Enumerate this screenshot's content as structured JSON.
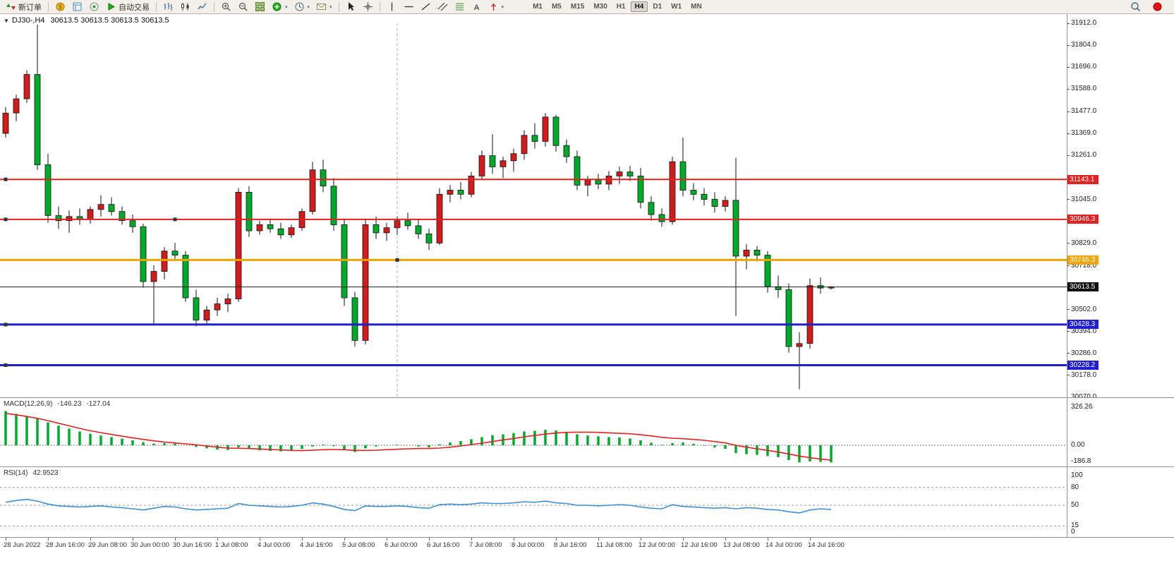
{
  "toolbar": {
    "new_order_label": "新订单",
    "autotrading_label": "自动交易",
    "left_icons": [
      {
        "icon": "market-watch-icon"
      },
      {
        "icon": "data-window-icon"
      },
      {
        "icon": "navigator-icon"
      }
    ],
    "chart_type_icons": [
      {
        "icon": "bar-chart-icon"
      },
      {
        "icon": "candlestick-icon"
      },
      {
        "icon": "line-chart-icon"
      }
    ],
    "view_icons": [
      {
        "icon": "zoom-in-icon"
      },
      {
        "icon": "zoom-out-icon"
      },
      {
        "icon": "tile-windows-icon"
      },
      {
        "icon": "indicators-icon",
        "dropdown": true
      },
      {
        "icon": "periods-icon",
        "dropdown": true
      },
      {
        "icon": "mail-icon",
        "dropdown": true
      }
    ],
    "cursor_icons": [
      {
        "icon": "cursor-icon"
      },
      {
        "icon": "crosshair-icon"
      }
    ],
    "draw_icons": [
      {
        "icon": "vertical-line-icon"
      },
      {
        "icon": "horizontal-line-icon"
      },
      {
        "icon": "trendline-icon"
      },
      {
        "icon": "channel-icon"
      },
      {
        "icon": "fibonacci-icon"
      },
      {
        "icon": "text-icon"
      },
      {
        "icon": "arrow-icon",
        "dropdown": true
      }
    ],
    "timeframes": [
      "M1",
      "M5",
      "M15",
      "M30",
      "H1",
      "H4",
      "D1",
      "W1",
      "MN"
    ],
    "active_timeframe": "H4",
    "right_icons": [
      {
        "icon": "search-icon"
      },
      {
        "icon": "alert-icon"
      }
    ]
  },
  "chart": {
    "one_click_glyph": "▼",
    "symbol_label": "DJ30-,H4",
    "quote_text": "30613.5 30613.5 30613.5 30613.5"
  },
  "chart_data": {
    "type": "candlestick",
    "symbol": "DJ30-",
    "timeframe": "H4",
    "bull_color": "#cf1d1d",
    "bear_color": "#00a92c",
    "price_axis": {
      "max": 31912.0,
      "min": 30070.0,
      "ticks": [
        31912.0,
        31804.0,
        31696.0,
        31588.0,
        31477.0,
        31369.0,
        31261.0,
        31045.0,
        30829.0,
        30718.0,
        30502.0,
        30394.0,
        30286.0,
        30178.0,
        30070.0
      ]
    },
    "levels": [
      {
        "value": 31143.1,
        "color": "#e02222",
        "width": 2,
        "handles": [
          8
        ]
      },
      {
        "value": 30946.3,
        "color": "#e02222",
        "width": 2,
        "handles": [
          8,
          248
        ]
      },
      {
        "value": 30746.3,
        "color": "#f0a500",
        "width": 3,
        "handles": [
          563
        ]
      },
      {
        "value": 30613.5,
        "color": "#222222",
        "width": 1,
        "handles": [],
        "current": true
      },
      {
        "value": 30428.3,
        "color": "#1f1fd0",
        "width": 3,
        "handles": [
          8
        ]
      },
      {
        "value": 30228.2,
        "color": "#1f1fd0",
        "width": 3,
        "handles": [
          8
        ]
      }
    ],
    "vline_index": 37,
    "candles": [
      [
        31370,
        31500,
        31350,
        31470
      ],
      [
        31470,
        31560,
        31430,
        31540
      ],
      [
        31540,
        31680,
        31520,
        31660
      ],
      [
        31660,
        31905,
        31190,
        31215
      ],
      [
        31215,
        31270,
        30930,
        30965
      ],
      [
        30965,
        31010,
        30900,
        30940
      ],
      [
        30940,
        30990,
        30880,
        30960
      ],
      [
        30960,
        31000,
        30920,
        30945
      ],
      [
        30945,
        31010,
        30925,
        30995
      ],
      [
        30995,
        31065,
        30960,
        31020
      ],
      [
        31020,
        31055,
        30965,
        30985
      ],
      [
        30985,
        31010,
        30920,
        30940
      ],
      [
        30940,
        30970,
        30880,
        30910
      ],
      [
        30910,
        30925,
        30610,
        30640
      ],
      [
        30640,
        30720,
        30430,
        30690
      ],
      [
        30690,
        30810,
        30650,
        30790
      ],
      [
        30790,
        30830,
        30740,
        30770
      ],
      [
        30770,
        30790,
        30540,
        30560
      ],
      [
        30560,
        30600,
        30420,
        30450
      ],
      [
        30450,
        30520,
        30430,
        30500
      ],
      [
        30500,
        30560,
        30470,
        30530
      ],
      [
        30530,
        30580,
        30490,
        30555
      ],
      [
        30555,
        31100,
        30540,
        31080
      ],
      [
        31080,
        31110,
        30860,
        30890
      ],
      [
        30890,
        30940,
        30870,
        30920
      ],
      [
        30920,
        30950,
        30880,
        30900
      ],
      [
        30900,
        30930,
        30850,
        30870
      ],
      [
        30870,
        30920,
        30855,
        30905
      ],
      [
        30905,
        31000,
        30890,
        30985
      ],
      [
        30985,
        31230,
        30970,
        31190
      ],
      [
        31190,
        31240,
        31080,
        31110
      ],
      [
        31110,
        31150,
        30890,
        30920
      ],
      [
        30920,
        30950,
        30520,
        30560
      ],
      [
        30560,
        30590,
        30320,
        30350
      ],
      [
        30350,
        30950,
        30330,
        30920
      ],
      [
        30920,
        30960,
        30850,
        30880
      ],
      [
        30880,
        30930,
        30840,
        30905
      ],
      [
        30905,
        30960,
        30870,
        30940
      ],
      [
        30940,
        30980,
        30895,
        30915
      ],
      [
        30915,
        30950,
        30850,
        30875
      ],
      [
        30875,
        30900,
        30795,
        30830
      ],
      [
        30830,
        31100,
        30820,
        31070
      ],
      [
        31070,
        31115,
        31030,
        31090
      ],
      [
        31090,
        31130,
        31045,
        31070
      ],
      [
        31070,
        31180,
        31055,
        31160
      ],
      [
        31160,
        31285,
        31140,
        31260
      ],
      [
        31260,
        31365,
        31170,
        31205
      ],
      [
        31205,
        31255,
        31150,
        31235
      ],
      [
        31235,
        31295,
        31180,
        31270
      ],
      [
        31270,
        31385,
        31240,
        31360
      ],
      [
        31360,
        31420,
        31295,
        31330
      ],
      [
        31330,
        31470,
        31305,
        31450
      ],
      [
        31450,
        31462,
        31280,
        31310
      ],
      [
        31310,
        31340,
        31225,
        31255
      ],
      [
        31255,
        31285,
        31090,
        31115
      ],
      [
        31115,
        31160,
        31060,
        31140
      ],
      [
        31140,
        31170,
        31095,
        31120
      ],
      [
        31120,
        31185,
        31090,
        31160
      ],
      [
        31160,
        31205,
        31120,
        31180
      ],
      [
        31180,
        31210,
        31135,
        31160
      ],
      [
        31160,
        31200,
        31000,
        31030
      ],
      [
        31030,
        31060,
        30940,
        30970
      ],
      [
        30970,
        31000,
        30910,
        30935
      ],
      [
        30935,
        31255,
        30920,
        31230
      ],
      [
        31230,
        31350,
        31060,
        31090
      ],
      [
        31090,
        31125,
        31040,
        31070
      ],
      [
        31070,
        31100,
        31015,
        31045
      ],
      [
        31045,
        31080,
        30980,
        31010
      ],
      [
        31010,
        31060,
        30985,
        31040
      ],
      [
        31040,
        31250,
        30470,
        30765
      ],
      [
        30765,
        30825,
        30700,
        30795
      ],
      [
        30795,
        30815,
        30740,
        30770
      ],
      [
        30770,
        30790,
        30585,
        30615
      ],
      [
        30615,
        30670,
        30560,
        30600
      ],
      [
        30600,
        30630,
        30290,
        30320
      ],
      [
        30320,
        30390,
        30110,
        30335
      ],
      [
        30335,
        30655,
        30310,
        30620
      ],
      [
        30620,
        30660,
        30580,
        30608
      ],
      [
        30608,
        30618,
        30600,
        30613.5
      ]
    ],
    "time_labels": [
      {
        "i": 0,
        "text": "28 Jun 2022"
      },
      {
        "i": 4,
        "text": "28 Jun 16:00"
      },
      {
        "i": 8,
        "text": "29 Jun 08:00"
      },
      {
        "i": 12,
        "text": "30 Jun 00:00"
      },
      {
        "i": 16,
        "text": "30 Jun 16:00"
      },
      {
        "i": 20,
        "text": "1 Jul 08:00"
      },
      {
        "i": 24,
        "text": "4 Jul 00:00"
      },
      {
        "i": 28,
        "text": "4 Jul 16:00"
      },
      {
        "i": 32,
        "text": "5 Jul 08:00"
      },
      {
        "i": 36,
        "text": "6 Jul 00:00"
      },
      {
        "i": 40,
        "text": "6 Jul 16:00"
      },
      {
        "i": 44,
        "text": "7 Jul 08:00"
      },
      {
        "i": 48,
        "text": "8 Jul 00:00"
      },
      {
        "i": 52,
        "text": "8 Jul 16:00"
      },
      {
        "i": 56,
        "text": "11 Jul 08:00"
      },
      {
        "i": 60,
        "text": "12 Jul 00:00"
      },
      {
        "i": 64,
        "text": "12 Jul 16:00"
      },
      {
        "i": 68,
        "text": "13 Jul 08:00"
      },
      {
        "i": 72,
        "text": "14 Jul 00:00"
      },
      {
        "i": 76,
        "text": "14 Jul 16:00"
      }
    ],
    "macd": {
      "label": "MACD(12,26,9)",
      "value": -146.23,
      "signal_value": -127.04,
      "color_histogram": "#00a92c",
      "color_signal": "#e02222",
      "scale_labels": [
        {
          "text": "326.26",
          "value": 326.26
        },
        {
          "text": "0.00",
          "value": 0
        },
        {
          "text": "-186.8",
          "value": -186.8
        }
      ],
      "histogram": [
        292,
        268,
        248,
        226,
        196,
        168,
        142,
        118,
        98,
        84,
        70,
        56,
        42,
        26,
        14,
        18,
        14,
        0,
        -14,
        -26,
        -36,
        -40,
        -18,
        -32,
        -42,
        -48,
        -52,
        -48,
        -32,
        -10,
        6,
        -8,
        -42,
        -58,
        -26,
        -10,
        -2,
        4,
        0,
        -10,
        -18,
        8,
        24,
        36,
        52,
        70,
        86,
        94,
        104,
        118,
        124,
        132,
        126,
        114,
        94,
        84,
        76,
        70,
        66,
        58,
        42,
        22,
        4,
        18,
        24,
        12,
        -4,
        -18,
        -30,
        -66,
        -76,
        -82,
        -92,
        -102,
        -126,
        -146,
        -138,
        -142,
        -146.23
      ],
      "signal": [
        272,
        260,
        246,
        230,
        210,
        188,
        166,
        144,
        124,
        108,
        92,
        78,
        64,
        50,
        38,
        28,
        20,
        12,
        4,
        -6,
        -16,
        -24,
        -26,
        -28,
        -32,
        -36,
        -40,
        -44,
        -46,
        -42,
        -38,
        -36,
        -38,
        -44,
        -44,
        -42,
        -38,
        -34,
        -30,
        -28,
        -28,
        -24,
        -16,
        -6,
        6,
        18,
        32,
        46,
        58,
        72,
        84,
        96,
        104,
        110,
        112,
        112,
        110,
        106,
        102,
        98,
        90,
        80,
        68,
        60,
        56,
        50,
        42,
        32,
        20,
        0,
        -16,
        -30,
        -44,
        -58,
        -74,
        -92,
        -106,
        -118,
        -127.04
      ]
    },
    "rsi": {
      "label": "RSI(14)",
      "value": 42.9523,
      "color_line": "#3f8fd2",
      "scale_labels": [
        {
          "text": "100",
          "value": 100
        },
        {
          "text": "80",
          "value": 80
        },
        {
          "text": "50",
          "value": 50
        },
        {
          "text": "15",
          "value": 15
        },
        {
          "text": "0",
          "value": 0
        }
      ],
      "dashed_levels": [
        80,
        50,
        15
      ],
      "series": [
        55,
        58,
        60,
        57,
        52,
        49,
        48,
        47,
        48,
        49,
        47,
        46,
        44,
        42,
        45,
        48,
        47,
        44,
        42,
        43,
        44,
        45,
        53,
        50,
        49,
        48,
        47,
        48,
        50,
        54,
        52,
        48,
        43,
        41,
        49,
        48,
        48,
        49,
        48,
        46,
        45,
        51,
        52,
        51,
        52,
        54,
        53,
        53,
        54,
        56,
        55,
        57,
        54,
        53,
        50,
        50,
        49,
        50,
        51,
        50,
        47,
        45,
        44,
        51,
        48,
        47,
        46,
        45,
        46,
        44,
        46,
        45,
        43,
        42,
        39,
        37,
        42,
        44,
        42.9523
      ]
    }
  }
}
